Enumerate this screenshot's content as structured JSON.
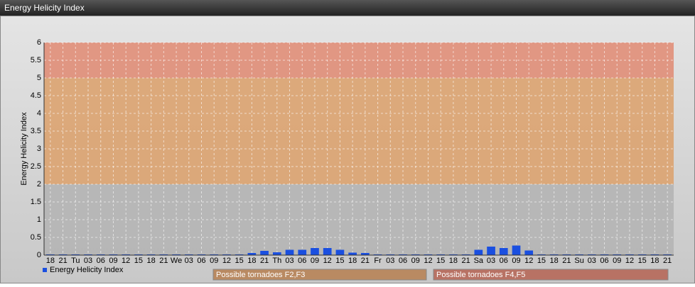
{
  "chart_data": {
    "type": "bar",
    "title": "Energy Helicity Index",
    "y_label": "Energy Helicity Index",
    "categories": [
      "18",
      "21",
      "Tu",
      "03",
      "06",
      "09",
      "12",
      "15",
      "18",
      "21",
      "We",
      "03",
      "06",
      "09",
      "12",
      "15",
      "18",
      "21",
      "Th",
      "03",
      "06",
      "09",
      "12",
      "15",
      "18",
      "21",
      "Fr",
      "03",
      "06",
      "09",
      "12",
      "15",
      "18",
      "21",
      "Sa",
      "03",
      "06",
      "09",
      "12",
      "15",
      "18",
      "21",
      "Su",
      "03",
      "06",
      "09",
      "12",
      "15",
      "18",
      "21"
    ],
    "series": [
      {
        "name": "Energy Helicity Index",
        "color": "#1a4fe0",
        "values": [
          0.02,
          0.02,
          0.02,
          0.02,
          0.02,
          0.02,
          0.02,
          0.02,
          0.02,
          0.02,
          0.02,
          0.02,
          0.02,
          0.02,
          0.02,
          0.02,
          0.06,
          0.12,
          0.08,
          0.15,
          0.15,
          0.2,
          0.2,
          0.15,
          0.07,
          0.06,
          0.02,
          0.02,
          0.02,
          0.02,
          0.02,
          0.02,
          0.02,
          0.02,
          0.15,
          0.24,
          0.2,
          0.27,
          0.13,
          0.02,
          0.02,
          0.02,
          0.02,
          0.02,
          0.02,
          0.02,
          0.02,
          0.02,
          0.02,
          0.02
        ]
      }
    ],
    "ylim": [
      0,
      6
    ],
    "yticks": [
      0,
      0.5,
      1,
      1.5,
      2,
      2.5,
      3,
      3.5,
      4,
      4.5,
      5,
      5.5,
      6
    ],
    "grid": true,
    "bands": [
      {
        "from": 0,
        "to": 2,
        "color": "#b3b3b3"
      },
      {
        "from": 2,
        "to": 5,
        "color": "#dca06a",
        "label": "Possible tornadoes F2,F3",
        "label_color": "#b98a62"
      },
      {
        "from": 5,
        "to": 6,
        "color": "#e08a72",
        "label": "Possible tornadoes F4,F5",
        "label_color": "#b87264"
      }
    ]
  }
}
